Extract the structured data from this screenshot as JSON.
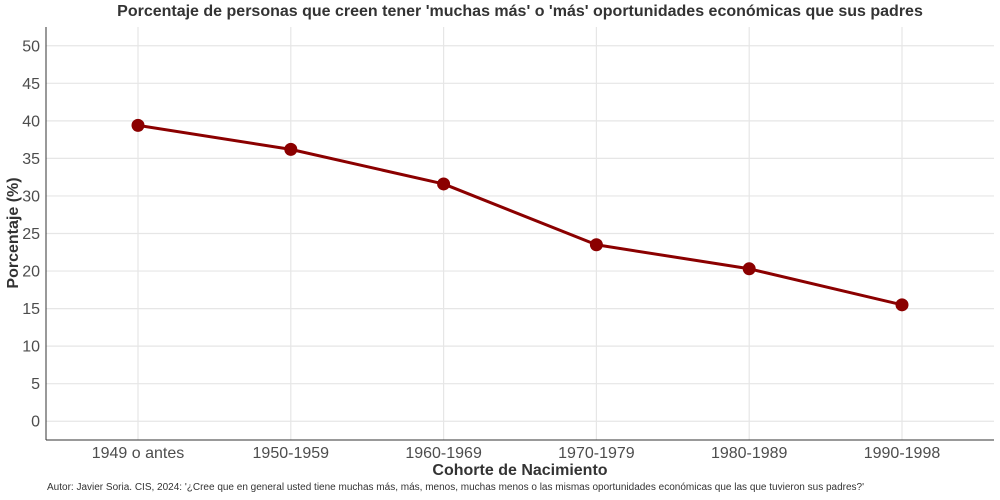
{
  "chart_data": {
    "type": "line",
    "title": "Porcentaje de personas que creen tener 'muchas más' o 'más' oportunidades económicas que sus padres",
    "xlabel": "Cohorte de Nacimiento",
    "ylabel": "Porcentaje (%)",
    "categories": [
      "1949 o antes",
      "1950-1959",
      "1960-1969",
      "1970-1979",
      "1980-1989",
      "1990-1998"
    ],
    "series": [
      {
        "values": [
          39.4,
          36.2,
          31.6,
          23.5,
          20.3,
          15.5
        ],
        "color": "#8b0000"
      }
    ],
    "ylim": [
      0,
      50
    ],
    "yticks": [
      0,
      5,
      10,
      15,
      20,
      25,
      30,
      35,
      40,
      45,
      50
    ],
    "grid": true,
    "caption": "Autor: Javier Soria. CIS, 2024: '¿Cree que en general usted tiene muchas más, más, menos, muchas menos o las mismas oportunidades económicas que las que tuvieron sus padres?'"
  }
}
